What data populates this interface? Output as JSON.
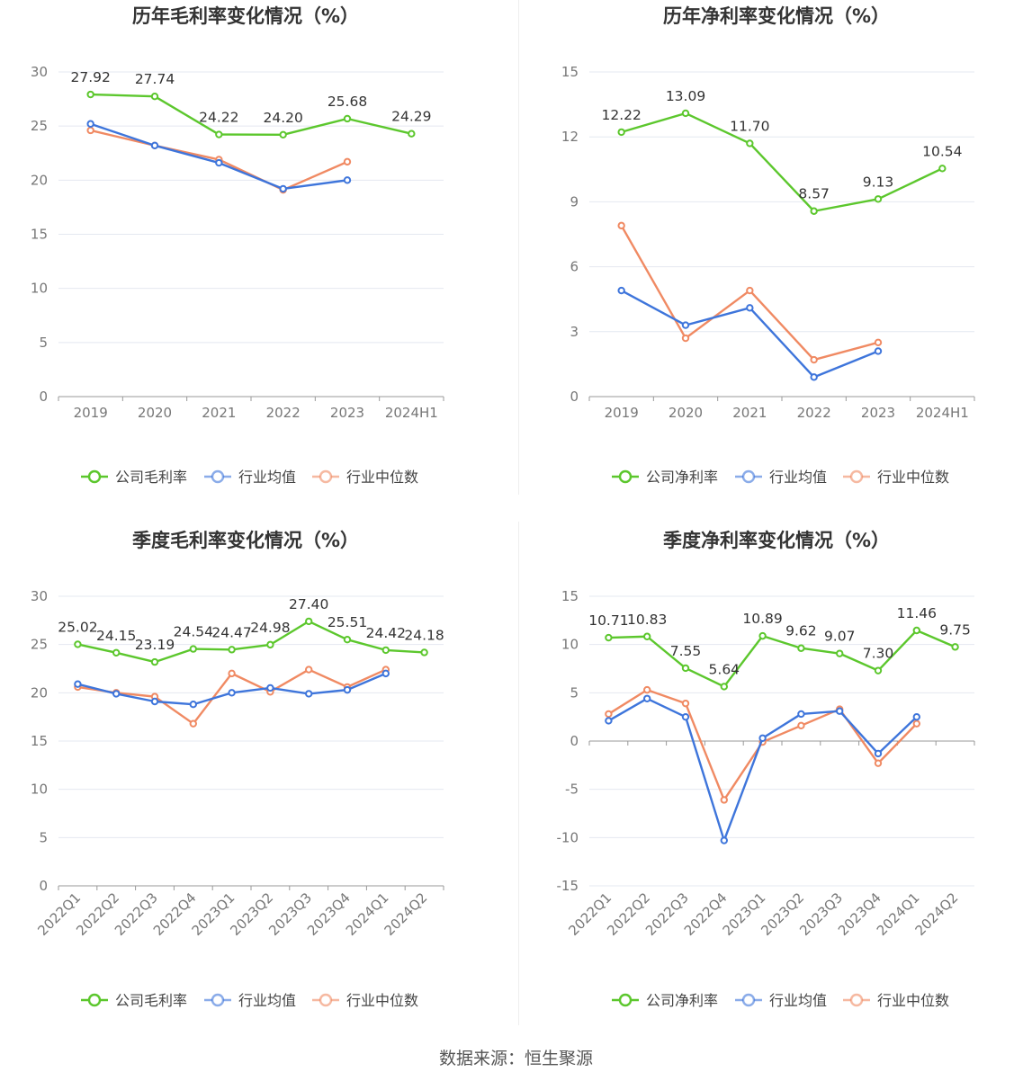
{
  "source": "数据来源：恒生聚源",
  "colors": {
    "company": "#5cc72d",
    "avg": "#3e75db",
    "median": "#f08a63",
    "grid": "#e4e8f0",
    "axis": "#999999"
  },
  "legend_labels": {
    "avg": "行业均值",
    "median": "行业中位数"
  },
  "chart_data": [
    {
      "type": "line",
      "title": "历年毛利率变化情况（%）",
      "categories": [
        "2019",
        "2020",
        "2021",
        "2022",
        "2023",
        "2024H1"
      ],
      "ylim": [
        0,
        30
      ],
      "yticks": [
        0,
        5,
        10,
        15,
        20,
        25,
        30
      ],
      "grid": true,
      "legend_position": "bottom",
      "series": [
        {
          "name": "公司毛利率",
          "values": [
            27.92,
            27.74,
            24.22,
            24.2,
            25.68,
            24.29
          ],
          "labels": [
            "27.92",
            "27.74",
            "24.22",
            "24.20",
            "25.68",
            "24.29"
          ]
        },
        {
          "name": "行业均值",
          "values": [
            25.2,
            23.2,
            21.6,
            19.2,
            20.0,
            null
          ]
        },
        {
          "name": "行业中位数",
          "values": [
            24.6,
            23.2,
            21.9,
            19.1,
            21.7,
            null
          ]
        }
      ]
    },
    {
      "type": "line",
      "title": "历年净利率变化情况（%）",
      "categories": [
        "2019",
        "2020",
        "2021",
        "2022",
        "2023",
        "2024H1"
      ],
      "ylim": [
        0,
        15
      ],
      "yticks": [
        0,
        3,
        6,
        9,
        12,
        15
      ],
      "grid": true,
      "legend_position": "bottom",
      "series": [
        {
          "name": "公司净利率",
          "values": [
            12.22,
            13.09,
            11.7,
            8.57,
            9.13,
            10.54
          ],
          "labels": [
            "12.22",
            "13.09",
            "11.70",
            "8.57",
            "9.13",
            "10.54"
          ]
        },
        {
          "name": "行业均值",
          "values": [
            4.9,
            3.3,
            4.1,
            0.9,
            2.1,
            null
          ]
        },
        {
          "name": "行业中位数",
          "values": [
            7.9,
            2.7,
            4.9,
            1.7,
            2.5,
            null
          ]
        }
      ]
    },
    {
      "type": "line",
      "title": "季度毛利率变化情况（%）",
      "categories": [
        "2022Q1",
        "2022Q2",
        "2022Q3",
        "2022Q4",
        "2023Q1",
        "2023Q2",
        "2023Q3",
        "2023Q4",
        "2024Q1",
        "2024Q2"
      ],
      "ylim": [
        0,
        30
      ],
      "yticks": [
        0,
        5,
        10,
        15,
        20,
        25,
        30
      ],
      "grid": true,
      "legend_position": "bottom",
      "series": [
        {
          "name": "公司毛利率",
          "values": [
            25.02,
            24.15,
            23.19,
            24.54,
            24.47,
            24.98,
            27.4,
            25.51,
            24.42,
            24.18
          ],
          "labels": [
            "25.02",
            "24.15",
            "23.19",
            "24.54",
            "24.47",
            "24.98",
            "27.40",
            "25.51",
            "24.42",
            "24.18"
          ]
        },
        {
          "name": "行业均值",
          "values": [
            20.9,
            19.9,
            19.1,
            18.8,
            20.0,
            20.5,
            19.9,
            20.3,
            22.0,
            null
          ]
        },
        {
          "name": "行业中位数",
          "values": [
            20.6,
            20.0,
            19.6,
            16.8,
            22.0,
            20.1,
            22.4,
            20.6,
            22.4,
            null
          ]
        }
      ]
    },
    {
      "type": "line",
      "title": "季度净利率变化情况（%）",
      "categories": [
        "2022Q1",
        "2022Q2",
        "2022Q3",
        "2022Q4",
        "2023Q1",
        "2023Q2",
        "2023Q3",
        "2023Q4",
        "2024Q1",
        "2024Q2"
      ],
      "ylim": [
        -15,
        15
      ],
      "yticks": [
        -15,
        -10,
        -5,
        0,
        5,
        10,
        15
      ],
      "grid": true,
      "legend_position": "bottom",
      "series": [
        {
          "name": "公司净利率",
          "values": [
            10.71,
            10.83,
            7.55,
            5.64,
            10.89,
            9.62,
            9.07,
            7.3,
            11.46,
            9.75
          ],
          "labels": [
            "10.71",
            "10.83",
            "7.55",
            "5.64",
            "10.89",
            "9.62",
            "9.07",
            "7.30",
            "11.46",
            "9.75"
          ]
        },
        {
          "name": "行业均值",
          "values": [
            2.1,
            4.4,
            2.5,
            -10.3,
            0.3,
            2.8,
            3.1,
            -1.3,
            2.5,
            null
          ]
        },
        {
          "name": "行业中位数",
          "values": [
            2.8,
            5.3,
            3.9,
            -6.1,
            -0.1,
            1.6,
            3.3,
            -2.3,
            1.8,
            null
          ]
        }
      ]
    }
  ]
}
